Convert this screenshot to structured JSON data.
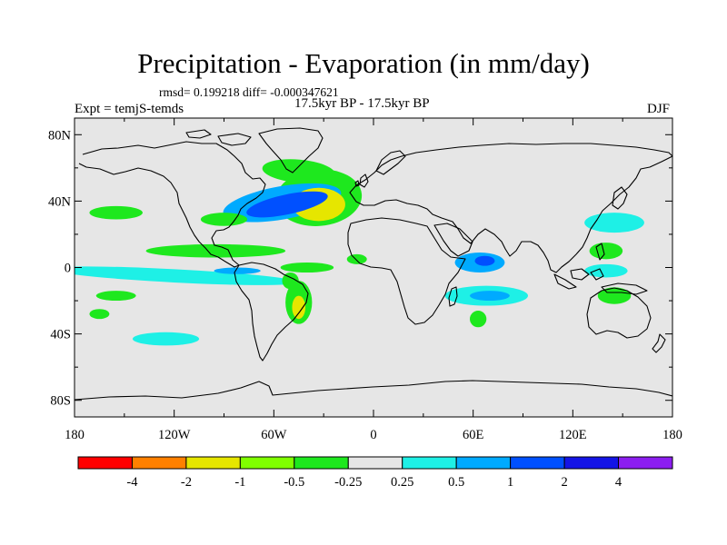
{
  "header": {
    "title": "Precipitation - Evaporation (in mm/day)",
    "stats": "rmsd= 0.199218 diff= -0.000347621",
    "period": "17.5kyr BP - 17.5kyr BP",
    "experiment": "Expt = temjS-temds",
    "season": "DJF"
  },
  "axes": {
    "lat_labels": [
      "80N",
      "40N",
      "0",
      "40S",
      "80S"
    ],
    "lon_labels": [
      "180",
      "120W",
      "60W",
      "0",
      "60E",
      "120E",
      "180"
    ],
    "lat_values": [
      80,
      40,
      0,
      -40,
      -80
    ],
    "lon_values": [
      -180,
      -120,
      -60,
      0,
      60,
      120,
      180
    ]
  },
  "colorbar": {
    "labels": [
      "-4",
      "-2",
      "-1",
      "-0.5",
      "-0.25",
      "0.25",
      "0.5",
      "1",
      "2",
      "4"
    ],
    "colors": [
      "#ff0000",
      "#ff8000",
      "#e6e600",
      "#80ff00",
      "#1ee81e",
      "#e6e6e6",
      "#1ef0e6",
      "#00aaff",
      "#0050ff",
      "#1414e6",
      "#8c1ef0"
    ]
  },
  "map": {
    "ocean_color": "#e6e6e6",
    "coast_color": "#000000",
    "anomalies": [
      {
        "region": "north-atlantic-dry-core",
        "lon": -52,
        "lat": 38,
        "w": 25,
        "h": 6,
        "rot": -12,
        "color": "#0050ff"
      },
      {
        "region": "north-atlantic-dry",
        "lon": -55,
        "lat": 39,
        "w": 36,
        "h": 10,
        "rot": -10,
        "color": "#00aaff"
      },
      {
        "region": "north-atlantic-wet",
        "lon": -33,
        "lat": 38,
        "w": 16,
        "h": 10,
        "rot": 0,
        "color": "#e6e600"
      },
      {
        "region": "north-atlantic-wet-ring",
        "lon": -33,
        "lat": 42,
        "w": 26,
        "h": 17,
        "rot": -5,
        "color": "#1ee81e"
      },
      {
        "region": "labrador-sea-wet",
        "lon": -45,
        "lat": 58,
        "w": 22,
        "h": 7,
        "rot": 5,
        "color": "#1ee81e"
      },
      {
        "region": "central-pacific-wet",
        "lon": -155,
        "lat": 33,
        "w": 16,
        "h": 4,
        "rot": 0,
        "color": "#1ee81e"
      },
      {
        "region": "east-pacific-wet",
        "lon": -90,
        "lat": 29,
        "w": 14,
        "h": 4,
        "rot": 0,
        "color": "#1ee81e"
      },
      {
        "region": "eq-pacific-wet",
        "lon": -95,
        "lat": 10,
        "w": 42,
        "h": 4,
        "rot": 0,
        "color": "#1ee81e"
      },
      {
        "region": "south-pacific-dry",
        "lon": -120,
        "lat": -5,
        "w": 75,
        "h": 4,
        "rot": 3,
        "color": "#1ef0e6"
      },
      {
        "region": "south-pacific-dry-core",
        "lon": -82,
        "lat": -2,
        "w": 14,
        "h": 2,
        "rot": 0,
        "color": "#00aaff"
      },
      {
        "region": "south-pacific-wet-a",
        "lon": -155,
        "lat": -17,
        "w": 12,
        "h": 3,
        "rot": 0,
        "color": "#1ee81e"
      },
      {
        "region": "south-pacific-wet-b",
        "lon": -165,
        "lat": -28,
        "w": 6,
        "h": 3,
        "rot": 0,
        "color": "#1ee81e"
      },
      {
        "region": "southern-ocean-dry",
        "lon": -125,
        "lat": -43,
        "w": 20,
        "h": 4,
        "rot": 0,
        "color": "#1ef0e6"
      },
      {
        "region": "brazil-wet",
        "lon": -45,
        "lat": -21,
        "w": 8,
        "h": 13,
        "rot": 0,
        "color": "#1ee81e"
      },
      {
        "region": "brazil-wet-core",
        "lon": -45,
        "lat": -24,
        "w": 4,
        "h": 7,
        "rot": 0,
        "color": "#e6e600"
      },
      {
        "region": "eq-atlantic-wet",
        "lon": -40,
        "lat": 0,
        "w": 16,
        "h": 3,
        "rot": 0,
        "color": "#1ee81e"
      },
      {
        "region": "gulf-guinea-wet",
        "lon": -10,
        "lat": 5,
        "w": 6,
        "h": 3,
        "rot": 0,
        "color": "#1ee81e"
      },
      {
        "region": "south-atlantic-wet",
        "lon": -50,
        "lat": -8,
        "w": 5,
        "h": 5,
        "rot": 0,
        "color": "#1ee81e"
      },
      {
        "region": "indian-ocean-dry",
        "lon": 64,
        "lat": 3,
        "w": 15,
        "h": 6,
        "rot": 0,
        "color": "#00aaff"
      },
      {
        "region": "indian-ocean-dry-core",
        "lon": 67,
        "lat": 4,
        "w": 6,
        "h": 3,
        "rot": 0,
        "color": "#0050ff"
      },
      {
        "region": "south-indian-dry",
        "lon": 68,
        "lat": -17,
        "w": 25,
        "h": 6,
        "rot": 0,
        "color": "#1ef0e6"
      },
      {
        "region": "south-indian-dry-core",
        "lon": 70,
        "lat": -17,
        "w": 12,
        "h": 3,
        "rot": 0,
        "color": "#00aaff"
      },
      {
        "region": "madagascar-wet",
        "lon": 63,
        "lat": -31,
        "w": 5,
        "h": 5,
        "rot": 0,
        "color": "#1ee81e"
      },
      {
        "region": "west-pacific-dry",
        "lon": 145,
        "lat": 27,
        "w": 18,
        "h": 6,
        "rot": 0,
        "color": "#1ef0e6"
      },
      {
        "region": "west-pacific-wet",
        "lon": 140,
        "lat": 10,
        "w": 10,
        "h": 5,
        "rot": 0,
        "color": "#1ee81e"
      },
      {
        "region": "maritime-dry",
        "lon": 140,
        "lat": -2,
        "w": 13,
        "h": 4,
        "rot": 0,
        "color": "#1ef0e6"
      },
      {
        "region": "north-australia-wet",
        "lon": 145,
        "lat": -17,
        "w": 10,
        "h": 5,
        "rot": 0,
        "color": "#1ee81e"
      }
    ]
  }
}
